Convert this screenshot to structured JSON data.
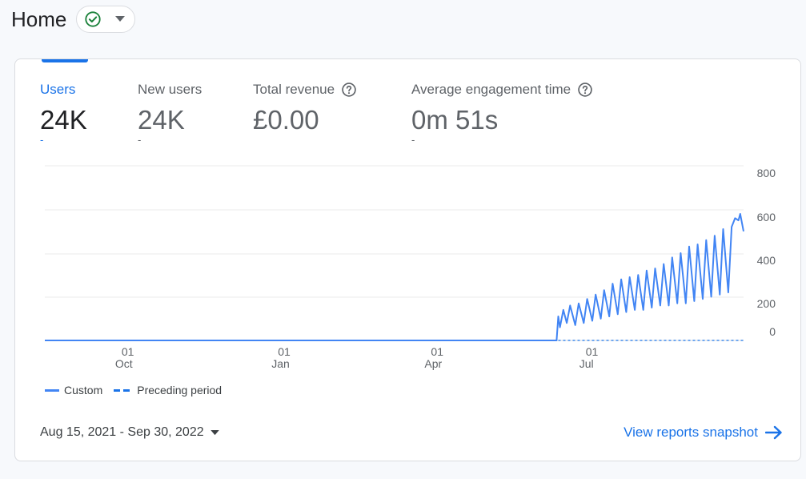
{
  "header": {
    "title": "Home",
    "status_icon": "check-circle-icon",
    "dropdown_icon": "caret-down-icon"
  },
  "metrics": [
    {
      "label": "Users",
      "value": "24K",
      "delta": "-",
      "active": true
    },
    {
      "label": "New users",
      "value": "24K",
      "delta": "-"
    },
    {
      "label": "Total revenue",
      "value": "£0.00",
      "delta": "",
      "help_icon": "help-icon"
    },
    {
      "label": "Average engagement time",
      "value": "0m 51s",
      "delta": "-",
      "help_icon": "help-icon"
    }
  ],
  "chart_data": {
    "type": "line",
    "y_ticks": [
      "800",
      "600",
      "400",
      "200",
      "0"
    ],
    "ylim": [
      0,
      800
    ],
    "x_ticks": [
      {
        "day": "01",
        "month": "Oct"
      },
      {
        "day": "01",
        "month": "Jan"
      },
      {
        "day": "01",
        "month": "Apr"
      },
      {
        "day": "01",
        "month": "Jul"
      }
    ],
    "x_tick_dates": [
      "2021-10-01",
      "2022-01-01",
      "2022-04-01",
      "2022-07-01"
    ],
    "x_range": [
      "2021-08-15",
      "2022-09-30"
    ],
    "grid": true,
    "series": [
      {
        "name": "Custom",
        "style": "solid",
        "color": "#4285f4",
        "points": [
          [
            "2021-08-15",
            0
          ],
          [
            "2022-06-12",
            0
          ],
          [
            "2022-06-13",
            110
          ],
          [
            "2022-06-14",
            60
          ],
          [
            "2022-06-16",
            140
          ],
          [
            "2022-06-18",
            80
          ],
          [
            "2022-06-20",
            160
          ],
          [
            "2022-06-23",
            70
          ],
          [
            "2022-06-25",
            170
          ],
          [
            "2022-06-28",
            80
          ],
          [
            "2022-06-30",
            190
          ],
          [
            "2022-07-03",
            90
          ],
          [
            "2022-07-05",
            210
          ],
          [
            "2022-07-08",
            100
          ],
          [
            "2022-07-10",
            230
          ],
          [
            "2022-07-13",
            110
          ],
          [
            "2022-07-15",
            260
          ],
          [
            "2022-07-18",
            120
          ],
          [
            "2022-07-20",
            280
          ],
          [
            "2022-07-23",
            130
          ],
          [
            "2022-07-25",
            290
          ],
          [
            "2022-07-28",
            140
          ],
          [
            "2022-07-30",
            300
          ],
          [
            "2022-08-02",
            140
          ],
          [
            "2022-08-04",
            320
          ],
          [
            "2022-08-07",
            150
          ],
          [
            "2022-08-09",
            330
          ],
          [
            "2022-08-12",
            160
          ],
          [
            "2022-08-14",
            350
          ],
          [
            "2022-08-17",
            160
          ],
          [
            "2022-08-19",
            380
          ],
          [
            "2022-08-22",
            170
          ],
          [
            "2022-08-24",
            400
          ],
          [
            "2022-08-27",
            170
          ],
          [
            "2022-08-29",
            430
          ],
          [
            "2022-09-01",
            180
          ],
          [
            "2022-09-03",
            440
          ],
          [
            "2022-09-06",
            190
          ],
          [
            "2022-09-08",
            460
          ],
          [
            "2022-09-11",
            200
          ],
          [
            "2022-09-13",
            480
          ],
          [
            "2022-09-16",
            210
          ],
          [
            "2022-09-18",
            510
          ],
          [
            "2022-09-21",
            220
          ],
          [
            "2022-09-23",
            520
          ],
          [
            "2022-09-25",
            560
          ],
          [
            "2022-09-27",
            550
          ],
          [
            "2022-09-28",
            580
          ],
          [
            "2022-09-30",
            500
          ]
        ]
      },
      {
        "name": "Preceding period",
        "style": "dashed",
        "color": "#1a73e8",
        "points": [
          [
            "2022-06-13",
            0
          ],
          [
            "2022-09-30",
            0
          ]
        ]
      }
    ]
  },
  "legend": {
    "custom_label": "Custom",
    "preceding_label": "Preceding period"
  },
  "footer": {
    "date_range": "Aug 15, 2021 - Sep 30, 2022",
    "date_dropdown_icon": "caret-down-icon",
    "view_reports_label": "View reports snapshot",
    "view_reports_icon": "arrow-right-icon"
  },
  "colors": {
    "accent": "#1a73e8",
    "series_line": "#4285f4",
    "success": "#188038"
  }
}
